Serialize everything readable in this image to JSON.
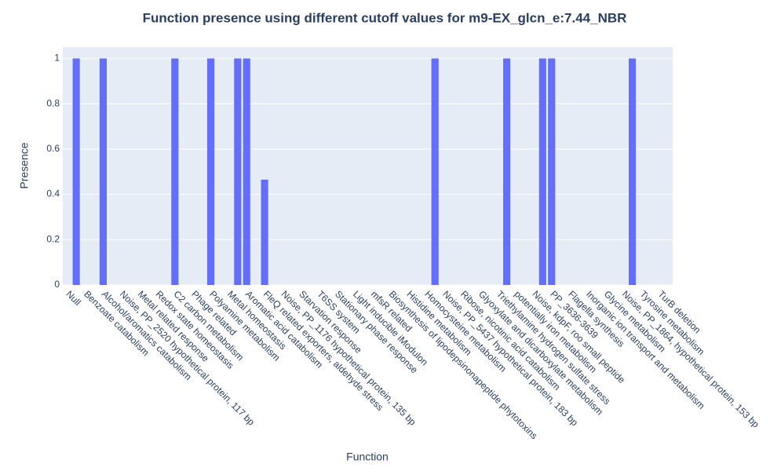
{
  "chart_data": {
    "type": "bar",
    "title": "Function presence using different cutoff values for m9-EX_glcn_e:7.44_NBR",
    "x_label": "Function",
    "y_label": "Presence",
    "categories": [
      "Null",
      null,
      "Benzoate catabolism",
      null,
      "Alcohol/aromatics catabolism",
      null,
      "Noise, PP_2520 hypothetical protein, 117 bp",
      null,
      "Metal related response",
      null,
      "Redox state homeostasis",
      null,
      "C2 carbon metabolism",
      null,
      "Phage related",
      null,
      "Polyamine metabolism",
      null,
      "Metal homeostasis",
      null,
      "Aromatic acid catabolism",
      null,
      "FleQ related exporters, aldehyde stress",
      null,
      "Noise, PP_1176 hypothetical protein, 135 bp",
      null,
      "Starvation response",
      null,
      "T6SS system",
      null,
      "Stationary phase response",
      null,
      "Light inducible iModulon",
      null,
      "mfsR related",
      null,
      "Biosynthesis of lipodepsinonapeptide phytotoxins",
      null,
      "Histidine metabolism",
      null,
      "Homocysteine metabolism",
      null,
      "Noise, PP_5437 hypothetical protein, 183 bp",
      null,
      "Ribose, nicotinic acid catabolism",
      null,
      "Glyoxylate and dicarboxylate metabolism",
      null,
      "Triethylamine hydrogen sulfate stress",
      null,
      "potentially iron metabolism",
      null,
      "Noise, kdpF, roo small peptide",
      null,
      "PP_3636-3639",
      null,
      "Flagella synthesis",
      null,
      "Inorganic ion transport and metabolism",
      null,
      "Glycine metabolism",
      null,
      "Noise, PP_1864, hypothetical protein, 153 bp",
      null,
      "Tyrosine metabolism",
      null,
      "TurB deletion",
      null
    ],
    "values": [
      0,
      1,
      0,
      0,
      1,
      0,
      0,
      0,
      0,
      0,
      0,
      0,
      1,
      0,
      0,
      0,
      1,
      0,
      0,
      1,
      1,
      0,
      0.465,
      0,
      0,
      0,
      0,
      0,
      0,
      0,
      0,
      0,
      0,
      0,
      0,
      0,
      0,
      0,
      0,
      0,
      0,
      1,
      0,
      0,
      0,
      0,
      0,
      0,
      0,
      1,
      0,
      0,
      0,
      1,
      1,
      0,
      0,
      0,
      0,
      0,
      0,
      0,
      0,
      1,
      0,
      0,
      0,
      0
    ],
    "color": "#636efa",
    "ylim": [
      0,
      1.05
    ],
    "yticks": [
      0,
      0.2,
      0.4,
      0.6,
      0.8,
      1
    ],
    "grid": true
  }
}
